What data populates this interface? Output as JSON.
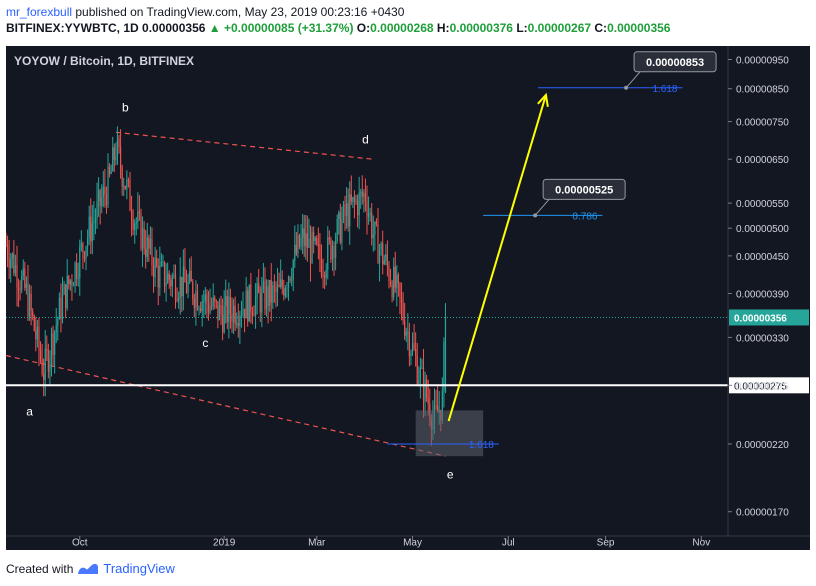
{
  "header": {
    "author": "mr_forexbull",
    "published": "published on TradingView.com, May 23, 2019 00:23:16 +0430",
    "symbol": "BITFINEX:YYWBTC, 1D",
    "last": "0.00000356",
    "change": "+0.00000085 (+31.37%)",
    "o_label": "O:",
    "o_value": "0.00000268",
    "h_label": "H:",
    "h_value": "0.00000376",
    "l_label": "L:",
    "l_value": "0.00000267",
    "c_label": "C:",
    "c_value": "0.00000356"
  },
  "footer": {
    "created_with": "Created with",
    "brand": "TradingView"
  },
  "colors": {
    "up": "#26a69a",
    "down": "#ef5350",
    "background": "#131722",
    "target_arrow": "#ffff00",
    "fib": "#2962ff",
    "fib786": "#2196f3"
  },
  "chart_data": {
    "type": "candlestick",
    "title": "YOYOW / Bitcoin, 1D, BITFINEX",
    "y_scale": "log",
    "ylim": [
      1.55e-06,
      1e-05
    ],
    "xlim": [
      "2018-08-15",
      "2019-11-18"
    ],
    "y_ticks": [
      "0.00000950",
      "0.00000850",
      "0.00000750",
      "0.00000650",
      "0.00000550",
      "0.00000500",
      "0.00000450",
      "0.00000390",
      "0.00000330",
      "0.00000275",
      "0.00000220",
      "0.00000170"
    ],
    "x_ticks": [
      {
        "label": "Oct",
        "date": "2018-10-01"
      },
      {
        "label": "2019",
        "date": "2019-01-01"
      },
      {
        "label": "Mar",
        "date": "2019-03-01"
      },
      {
        "label": "May",
        "date": "2019-05-01"
      },
      {
        "label": "Jul",
        "date": "2019-07-01"
      },
      {
        "label": "Sep",
        "date": "2019-09-01"
      },
      {
        "label": "Nov",
        "date": "2019-11-01"
      }
    ],
    "anchors": [
      {
        "date": "2018-08-15",
        "price": 4.7e-06
      },
      {
        "date": "2018-08-28",
        "price": 3.9e-06
      },
      {
        "date": "2018-09-08",
        "price": 2.9e-06
      },
      {
        "date": "2018-09-20",
        "price": 3.8e-06
      },
      {
        "date": "2018-10-05",
        "price": 4.8e-06
      },
      {
        "date": "2018-10-20",
        "price": 6e-06
      },
      {
        "date": "2018-10-24",
        "price": 6.8e-06
      },
      {
        "date": "2018-11-05",
        "price": 5.2e-06
      },
      {
        "date": "2018-11-20",
        "price": 4.2e-06
      },
      {
        "date": "2018-12-10",
        "price": 4e-06
      },
      {
        "date": "2018-12-30",
        "price": 3.6e-06
      },
      {
        "date": "2019-01-20",
        "price": 3.8e-06
      },
      {
        "date": "2019-02-05",
        "price": 3.9e-06
      },
      {
        "date": "2019-02-20",
        "price": 4.8e-06
      },
      {
        "date": "2019-03-05",
        "price": 4.4e-06
      },
      {
        "date": "2019-03-20",
        "price": 5.3e-06
      },
      {
        "date": "2019-04-01",
        "price": 5.7e-06
      },
      {
        "date": "2019-04-06",
        "price": 4.9e-06
      },
      {
        "date": "2019-04-20",
        "price": 4e-06
      },
      {
        "date": "2019-05-05",
        "price": 2.9e-06
      },
      {
        "date": "2019-05-15",
        "price": 2.4e-06
      },
      {
        "date": "2019-05-20",
        "price": 2.6e-06
      },
      {
        "date": "2019-05-22",
        "price": 3.56e-06
      }
    ],
    "last_candle": {
      "date": "2019-05-22",
      "open": 2.68e-06,
      "high": 3.76e-06,
      "low": 2.67e-06,
      "close": 3.56e-06
    },
    "price_lines": [
      {
        "price": 3.56e-06,
        "label": "0.00000356",
        "style": "dotted"
      },
      {
        "price": 2.75e-06,
        "label": "0.00000275",
        "style": "solid"
      }
    ],
    "fib_levels": [
      {
        "label": "1.618",
        "price": 8.53e-06,
        "x_start": "2019-07-20",
        "x_end": "2019-10-20"
      },
      {
        "label": "0.786",
        "price": 5.25e-06,
        "x_start": "2019-06-15",
        "x_end": "2019-08-30"
      },
      {
        "label": "1.618",
        "price": 2.2e-06,
        "x_start": "2019-04-15",
        "x_end": "2019-06-25"
      }
    ],
    "callouts": [
      "0.00000853",
      "0.00000525"
    ],
    "wave_labels": [
      {
        "label": "a",
        "date": "2018-08-30",
        "price": 2.45e-06
      },
      {
        "label": "b",
        "date": "2018-10-30",
        "price": 7.8e-06
      },
      {
        "label": "c",
        "date": "2018-12-20",
        "price": 3.18e-06
      },
      {
        "label": "d",
        "date": "2019-04-01",
        "price": 6.9e-06
      },
      {
        "label": "e",
        "date": "2019-05-25",
        "price": 1.93e-06
      }
    ],
    "trendlines": [
      {
        "from": {
          "date": "2018-10-24",
          "price": 7.2e-06
        },
        "to": {
          "date": "2019-04-06",
          "price": 6.5e-06
        }
      },
      {
        "from": {
          "date": "2018-08-15",
          "price": 3.08e-06
        },
        "to": {
          "date": "2019-05-22",
          "price": 2.1e-06
        }
      }
    ],
    "target_arrow": {
      "from": {
        "date": "2019-05-24",
        "price": 2.4e-06
      },
      "to": {
        "date": "2019-07-25",
        "price": 8.3e-06
      }
    },
    "box": {
      "x_start": "2019-05-03",
      "x_end": "2019-06-15",
      "price_low": 2.1e-06,
      "price_high": 2.5e-06
    }
  }
}
